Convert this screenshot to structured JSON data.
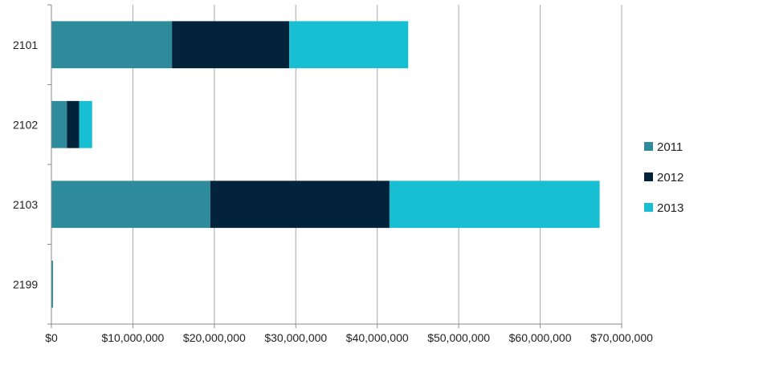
{
  "chart_data": {
    "type": "bar",
    "orientation": "horizontal",
    "stacked": true,
    "title": "",
    "xlabel": "",
    "ylabel": "",
    "categories": [
      "2101",
      "2102",
      "2103",
      "2199"
    ],
    "series": [
      {
        "name": "2011",
        "color": "#2e8b9c",
        "values": [
          14800000,
          1900000,
          19500000,
          200000
        ]
      },
      {
        "name": "2012",
        "color": "#02233a",
        "values": [
          14400000,
          1500000,
          22000000,
          0
        ]
      },
      {
        "name": "2013",
        "color": "#18bfd3",
        "values": [
          14600000,
          1600000,
          25800000,
          0
        ]
      }
    ],
    "xlim": [
      0,
      70000000
    ],
    "x_ticks": [
      0,
      10000000,
      20000000,
      30000000,
      40000000,
      50000000,
      60000000,
      70000000
    ],
    "x_tick_labels": [
      "$0",
      "$10,000,000",
      "$20,000,000",
      "$30,000,000",
      "$40,000,000",
      "$50,000,000",
      "$60,000,000",
      "$70,000,000"
    ],
    "grid": "vertical",
    "legend_position": "right"
  }
}
